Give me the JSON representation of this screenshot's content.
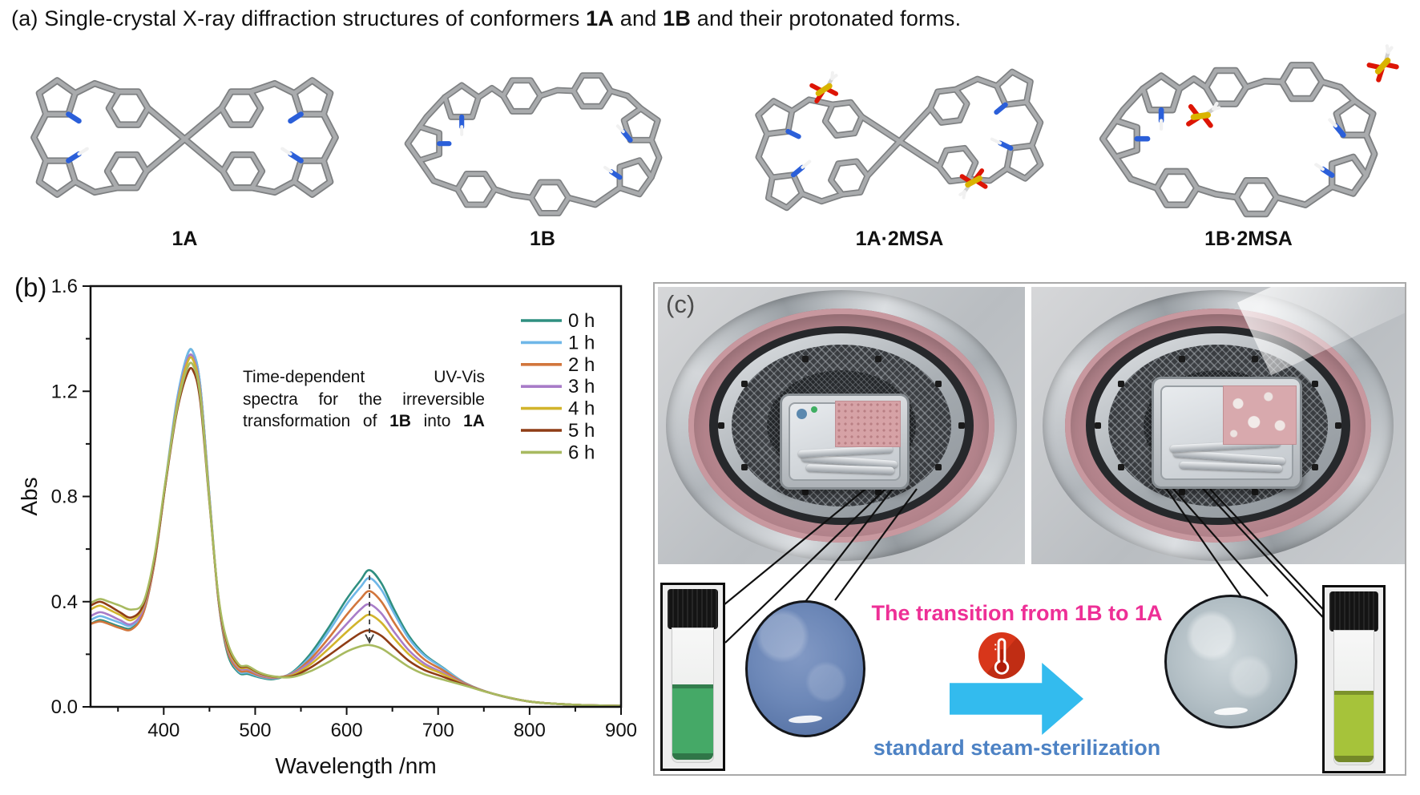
{
  "palette": {
    "n_blue": "#2b5fd9",
    "s_yellow": "#d9b400",
    "o_red": "#dd1505",
    "carbon_gray": "#a9abad",
    "h_white": "#f1f1f1",
    "accent_pink": "#ee2f96",
    "accent_blue": "#4d82c4",
    "arrow_cyan": "#33bbee",
    "thermo_red": "#d8361a"
  },
  "figure": {
    "panel_a_title_segments": [
      {
        "t": "(a) Single-crystal X-ray diffraction structures of conformers "
      },
      {
        "t": "1A",
        "b": true
      },
      {
        "t": " and "
      },
      {
        "t": "1B",
        "b": true
      },
      {
        "t": " and their protonated forms."
      }
    ],
    "molecule_labels": [
      "1A",
      "1B",
      "1A·2MSA",
      "1B·2MSA"
    ],
    "panel_b_label": "(b)",
    "panel_c_label": "(c)",
    "transition_label": "The transition from 1B to 1A",
    "process_label": "standard steam-sterilization"
  },
  "chart_data": {
    "type": "line",
    "title": "",
    "xlabel": "Wavelength /nm",
    "ylabel": "Abs",
    "xlim": [
      320,
      900
    ],
    "ylim": [
      0,
      1.6
    ],
    "x_ticks": [
      400,
      500,
      600,
      700,
      800,
      900
    ],
    "x_minor_ticks": [
      350,
      450,
      550,
      650,
      750,
      850
    ],
    "y_ticks": [
      0.0,
      0.4,
      0.8,
      1.2,
      1.6
    ],
    "y_minor_ticks": [
      0.2,
      0.6,
      1.0,
      1.4
    ],
    "grid": false,
    "legend_position": "top-right",
    "annotation_lines": [
      "Time-dependent UV-Vis",
      "spectra for the irreversible",
      "transformation of 1B into 1A"
    ],
    "bold_tokens": [
      "1A",
      "1B"
    ],
    "arrow_annotation": {
      "x": 625,
      "y_from": 0.5,
      "y_to": 0.245,
      "style": "dashed, pointing down"
    },
    "x": [
      320,
      330,
      340,
      352,
      365,
      378,
      390,
      402,
      414,
      425,
      432,
      440,
      450,
      460,
      470,
      482,
      492,
      505,
      520,
      540,
      560,
      580,
      600,
      615,
      625,
      638,
      652,
      668,
      685,
      705,
      730,
      760,
      800,
      850,
      900
    ],
    "series": [
      {
        "name": "0 h",
        "color": "#2f8f80",
        "values": [
          0.315,
          0.33,
          0.32,
          0.305,
          0.3,
          0.36,
          0.55,
          0.85,
          1.15,
          1.33,
          1.35,
          1.22,
          0.8,
          0.4,
          0.2,
          0.13,
          0.125,
          0.112,
          0.105,
          0.13,
          0.2,
          0.3,
          0.41,
          0.48,
          0.52,
          0.47,
          0.37,
          0.27,
          0.2,
          0.15,
          0.09,
          0.05,
          0.02,
          0.008,
          0.004
        ]
      },
      {
        "name": "1 h",
        "color": "#6fb7e8",
        "values": [
          0.33,
          0.345,
          0.335,
          0.32,
          0.31,
          0.37,
          0.56,
          0.86,
          1.16,
          1.33,
          1.35,
          1.22,
          0.8,
          0.405,
          0.21,
          0.135,
          0.13,
          0.115,
          0.108,
          0.128,
          0.19,
          0.285,
          0.39,
          0.455,
          0.49,
          0.445,
          0.355,
          0.26,
          0.195,
          0.148,
          0.09,
          0.05,
          0.02,
          0.008,
          0.004
        ]
      },
      {
        "name": "2 h",
        "color": "#d2763c",
        "values": [
          0.315,
          0.325,
          0.315,
          0.3,
          0.295,
          0.36,
          0.55,
          0.85,
          1.14,
          1.31,
          1.33,
          1.2,
          0.79,
          0.4,
          0.21,
          0.14,
          0.135,
          0.118,
          0.11,
          0.126,
          0.18,
          0.26,
          0.35,
          0.41,
          0.44,
          0.4,
          0.32,
          0.24,
          0.18,
          0.14,
          0.088,
          0.05,
          0.02,
          0.008,
          0.004
        ]
      },
      {
        "name": "3 h",
        "color": "#a87cc8",
        "values": [
          0.345,
          0.36,
          0.35,
          0.33,
          0.315,
          0.375,
          0.56,
          0.855,
          1.14,
          1.31,
          1.33,
          1.2,
          0.79,
          0.405,
          0.22,
          0.148,
          0.143,
          0.122,
          0.112,
          0.124,
          0.17,
          0.24,
          0.315,
          0.37,
          0.39,
          0.355,
          0.285,
          0.215,
          0.165,
          0.13,
          0.085,
          0.05,
          0.02,
          0.008,
          0.004
        ]
      },
      {
        "name": "4 h",
        "color": "#d2b42c",
        "values": [
          0.37,
          0.385,
          0.37,
          0.35,
          0.33,
          0.385,
          0.565,
          0.855,
          1.135,
          1.3,
          1.32,
          1.19,
          0.785,
          0.41,
          0.228,
          0.153,
          0.148,
          0.126,
          0.114,
          0.12,
          0.16,
          0.22,
          0.285,
          0.33,
          0.35,
          0.32,
          0.26,
          0.2,
          0.155,
          0.125,
          0.083,
          0.05,
          0.02,
          0.008,
          0.004
        ]
      },
      {
        "name": "5 h",
        "color": "#8f3d16",
        "values": [
          0.385,
          0.4,
          0.385,
          0.36,
          0.34,
          0.39,
          0.565,
          0.85,
          1.115,
          1.26,
          1.28,
          1.16,
          0.775,
          0.41,
          0.235,
          0.158,
          0.152,
          0.128,
          0.115,
          0.116,
          0.148,
          0.195,
          0.245,
          0.28,
          0.29,
          0.27,
          0.225,
          0.175,
          0.14,
          0.115,
          0.082,
          0.05,
          0.02,
          0.008,
          0.004
        ]
      },
      {
        "name": "6 h",
        "color": "#a8ba60",
        "values": [
          0.395,
          0.41,
          0.4,
          0.385,
          0.37,
          0.4,
          0.575,
          0.86,
          1.125,
          1.28,
          1.3,
          1.18,
          0.78,
          0.415,
          0.243,
          0.162,
          0.155,
          0.13,
          0.116,
          0.113,
          0.135,
          0.17,
          0.21,
          0.23,
          0.235,
          0.222,
          0.19,
          0.152,
          0.124,
          0.104,
          0.08,
          0.05,
          0.02,
          0.008,
          0.004
        ]
      }
    ]
  }
}
